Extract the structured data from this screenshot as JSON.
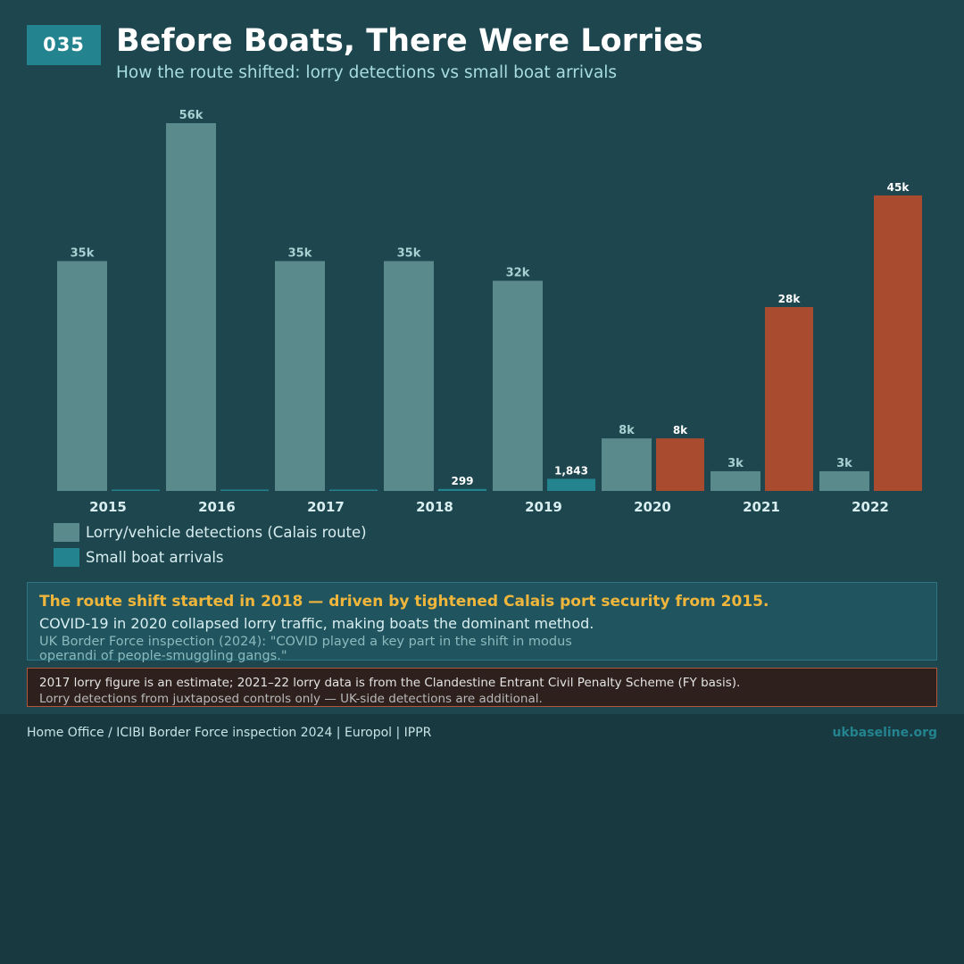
{
  "header": {
    "badge": "035",
    "title": "Before Boats, There Were Lorries",
    "subtitle": "How the route shifted: lorry detections vs small boat arrivals"
  },
  "colors": {
    "lorry": "#5a8a8c",
    "boat_small": "#23838f",
    "boat_large": "#a84b2f",
    "lorry_label": "#a8d0d2",
    "boat_label": "#ffffff",
    "axis_label": "#d8eef0"
  },
  "chart_data": {
    "type": "bar",
    "categories": [
      "2015",
      "2016",
      "2017",
      "2018",
      "2019",
      "2020",
      "2021",
      "2022"
    ],
    "ylim": [
      0,
      56000
    ],
    "series": [
      {
        "name": "Lorry/vehicle detections (Calais route)",
        "values": [
          35000,
          56000,
          35000,
          35000,
          32000,
          8000,
          3000,
          3000
        ],
        "labels": [
          "35k",
          "56k",
          "35k",
          "35k",
          "32k",
          "8k",
          "3k",
          "3k"
        ]
      },
      {
        "name": "Small boat arrivals",
        "values": [
          0,
          0,
          0,
          299,
          1843,
          8000,
          28000,
          45000
        ],
        "labels": [
          "",
          "",
          "",
          "299",
          "1,843",
          "8k",
          "28k",
          "45k"
        ]
      }
    ]
  },
  "legend": {
    "lorry": "Lorry/vehicle detections (Calais route)",
    "boats": "Small boat arrivals"
  },
  "insight": {
    "headline": "The route shift started in 2018 — driven by tightened Calais port security from 2015.",
    "body": "COVID-19 in 2020 collapsed lorry traffic, making boats the dominant method.",
    "quote": "UK Border Force inspection (2024): \"COVID played a key part in the shift in modus operandi of people-smuggling gangs.\""
  },
  "note": {
    "line1": "2017 lorry figure is an estimate; 2021–22 lorry data is from the Clandestine Entrant Civil Penalty Scheme (FY basis).",
    "line2": "Lorry detections from juxtaposed controls only — UK-side detections are additional."
  },
  "footer": {
    "source": "Home Office / ICIBI Border Force inspection 2024 | Europol | IPPR",
    "site": "ukbaseline.org"
  }
}
